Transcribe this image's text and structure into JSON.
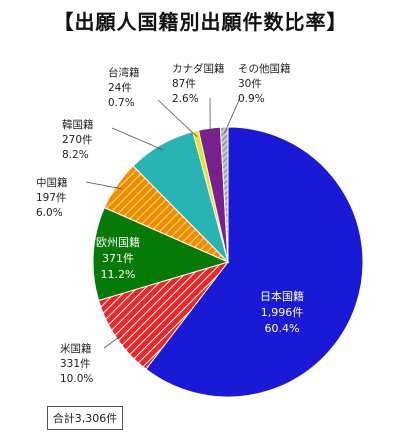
{
  "chart_data": {
    "type": "pie",
    "title": "【出願人国籍別出願件数比率】",
    "total_label": "合計3,306件",
    "slices": [
      {
        "name": "日本国籍",
        "count": "1,996件",
        "value": 60.4,
        "pct_label": "60.4%",
        "color": "#1a1ad6",
        "pattern": "solid",
        "label_inside": true
      },
      {
        "name": "米国籍",
        "count": "331件",
        "value": 10.0,
        "pct_label": "10.0%",
        "color": "#e8282a",
        "pattern": "hatch-white",
        "label_inside": false
      },
      {
        "name": "欧州国籍",
        "count": "371件",
        "value": 11.2,
        "pct_label": "11.2%",
        "color": "#067a06",
        "pattern": "solid",
        "label_inside": true
      },
      {
        "name": "中国籍",
        "count": "197件",
        "value": 6.0,
        "pct_label": "6.0%",
        "color": "#f08a0c",
        "pattern": "hatch-yellow",
        "label_inside": false
      },
      {
        "name": "韓国籍",
        "count": "270件",
        "value": 8.2,
        "pct_label": "8.2%",
        "color": "#2ab3b3",
        "pattern": "solid",
        "label_inside": false
      },
      {
        "name": "台湾籍",
        "count": "24件",
        "value": 0.7,
        "pct_label": "0.7%",
        "color": "#e6e61a",
        "pattern": "solid",
        "label_inside": false
      },
      {
        "name": "カナダ国籍",
        "count": "87件",
        "value": 2.6,
        "pct_label": "2.6%",
        "color": "#7a1f8e",
        "pattern": "solid",
        "label_inside": false
      },
      {
        "name": "その他国籍",
        "count": "30件",
        "value": 0.9,
        "pct_label": "0.9%",
        "color": "#9a9aa6",
        "pattern": "hatch-gray",
        "label_inside": false
      }
    ]
  }
}
